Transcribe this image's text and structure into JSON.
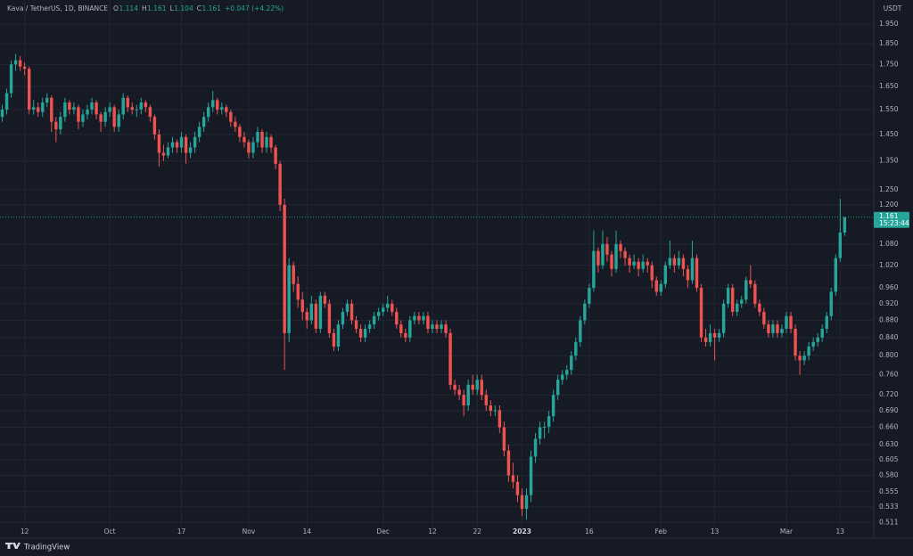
{
  "chart_data": {
    "type": "candlestick",
    "symbol": "Kava / TetherUS, 1D, BINANCE",
    "ohlc_legend": [
      {
        "key": "O",
        "value": "1.114"
      },
      {
        "key": "H",
        "value": "1.161"
      },
      {
        "key": "L",
        "value": "1.104"
      },
      {
        "key": "C",
        "value": "1.161"
      }
    ],
    "change": "+0.047 (+4.22%)",
    "currency": "USDT",
    "brand": "TradingView",
    "last_price": 1.161,
    "countdown": "15:23:44",
    "log_scale": true,
    "grid": true,
    "up_color": "#26a69a",
    "down_color": "#ef5350",
    "ylim": [
      0.497,
      2.081
    ],
    "yticks": [
      {
        "value": 1.95,
        "label": "1.950"
      },
      {
        "value": 1.85,
        "label": "1.850"
      },
      {
        "value": 1.75,
        "label": "1.750"
      },
      {
        "value": 1.65,
        "label": "1.650"
      },
      {
        "value": 1.55,
        "label": "1.550"
      },
      {
        "value": 1.45,
        "label": "1.450"
      },
      {
        "value": 1.35,
        "label": "1.350"
      },
      {
        "value": 1.25,
        "label": "1.250"
      },
      {
        "value": 1.2,
        "label": "1.200"
      },
      {
        "value": 1.08,
        "label": "1.080"
      },
      {
        "value": 1.02,
        "label": "1.020"
      },
      {
        "value": 0.96,
        "label": "0.960"
      },
      {
        "value": 0.92,
        "label": "0.920"
      },
      {
        "value": 0.88,
        "label": "0.880"
      },
      {
        "value": 0.84,
        "label": "0.840"
      },
      {
        "value": 0.8,
        "label": "0.800"
      },
      {
        "value": 0.76,
        "label": "0.760"
      },
      {
        "value": 0.72,
        "label": "0.720"
      },
      {
        "value": 0.69,
        "label": "0.690"
      },
      {
        "value": 0.66,
        "label": "0.660"
      },
      {
        "value": 0.63,
        "label": "0.630"
      },
      0.605,
      {
        "value": 0.58,
        "label": "0.580"
      },
      0.555,
      0.533,
      0.511
    ],
    "xlim": [
      -0.5,
      194.5
    ],
    "xticks": [
      {
        "value": 5,
        "label": "12"
      },
      {
        "value": 24,
        "label": "Oct"
      },
      {
        "value": 40,
        "label": "17"
      },
      {
        "value": 55,
        "label": "Nov"
      },
      {
        "value": 68,
        "label": "14"
      },
      {
        "value": 85,
        "label": "Dec"
      },
      {
        "value": 96,
        "label": "12"
      },
      {
        "value": 106,
        "label": "22"
      },
      {
        "value": 116,
        "label": "2023"
      },
      {
        "value": 131,
        "label": "16"
      },
      {
        "value": 147,
        "label": "Feb"
      },
      {
        "value": 159,
        "label": "13"
      },
      {
        "value": 175,
        "label": "Mar"
      },
      {
        "value": 187,
        "label": "13"
      }
    ],
    "candles": [
      [
        1.52,
        1.57,
        1.5,
        1.55
      ],
      [
        1.55,
        1.64,
        1.53,
        1.62
      ],
      [
        1.62,
        1.77,
        1.6,
        1.75
      ],
      [
        1.75,
        1.8,
        1.72,
        1.77
      ],
      [
        1.77,
        1.79,
        1.72,
        1.74
      ],
      [
        1.74,
        1.76,
        1.7,
        1.73
      ],
      [
        1.73,
        1.74,
        1.53,
        1.55
      ],
      [
        1.55,
        1.59,
        1.53,
        1.56
      ],
      [
        1.56,
        1.58,
        1.52,
        1.54
      ],
      [
        1.54,
        1.6,
        1.52,
        1.58
      ],
      [
        1.58,
        1.62,
        1.56,
        1.6
      ],
      [
        1.6,
        1.61,
        1.46,
        1.5
      ],
      [
        1.5,
        1.52,
        1.42,
        1.47
      ],
      [
        1.47,
        1.54,
        1.45,
        1.52
      ],
      [
        1.52,
        1.6,
        1.5,
        1.58
      ],
      [
        1.58,
        1.59,
        1.53,
        1.55
      ],
      [
        1.55,
        1.58,
        1.53,
        1.56
      ],
      [
        1.56,
        1.57,
        1.47,
        1.5
      ],
      [
        1.5,
        1.55,
        1.48,
        1.53
      ],
      [
        1.53,
        1.57,
        1.51,
        1.55
      ],
      [
        1.55,
        1.6,
        1.53,
        1.58
      ],
      [
        1.58,
        1.59,
        1.51,
        1.53
      ],
      [
        1.53,
        1.54,
        1.46,
        1.5
      ],
      [
        1.5,
        1.56,
        1.48,
        1.54
      ],
      [
        1.54,
        1.58,
        1.52,
        1.56
      ],
      [
        1.56,
        1.57,
        1.46,
        1.48
      ],
      [
        1.48,
        1.55,
        1.46,
        1.53
      ],
      [
        1.53,
        1.62,
        1.51,
        1.6
      ],
      [
        1.6,
        1.61,
        1.54,
        1.56
      ],
      [
        1.56,
        1.58,
        1.53,
        1.55
      ],
      [
        1.55,
        1.57,
        1.52,
        1.551
      ],
      [
        1.551,
        1.6,
        1.53,
        1.58
      ],
      [
        1.58,
        1.59,
        1.54,
        1.56
      ],
      [
        1.56,
        1.57,
        1.5,
        1.52
      ],
      [
        1.52,
        1.53,
        1.43,
        1.45
      ],
      [
        1.45,
        1.47,
        1.33,
        1.38
      ],
      [
        1.38,
        1.41,
        1.35,
        1.37
      ],
      [
        1.37,
        1.42,
        1.36,
        1.4
      ],
      [
        1.4,
        1.44,
        1.38,
        1.42
      ],
      [
        1.42,
        1.43,
        1.38,
        1.4
      ],
      [
        1.4,
        1.46,
        1.38,
        1.44
      ],
      [
        1.44,
        1.45,
        1.34,
        1.38
      ],
      [
        1.38,
        1.42,
        1.36,
        1.4
      ],
      [
        1.4,
        1.46,
        1.38,
        1.44
      ],
      [
        1.44,
        1.5,
        1.42,
        1.48
      ],
      [
        1.48,
        1.54,
        1.46,
        1.52
      ],
      [
        1.52,
        1.58,
        1.5,
        1.56
      ],
      [
        1.56,
        1.63,
        1.54,
        1.59
      ],
      [
        1.59,
        1.6,
        1.53,
        1.55
      ],
      [
        1.55,
        1.58,
        1.53,
        1.56
      ],
      [
        1.56,
        1.57,
        1.52,
        1.54
      ],
      [
        1.54,
        1.55,
        1.48,
        1.5
      ],
      [
        1.5,
        1.52,
        1.46,
        1.48
      ],
      [
        1.48,
        1.49,
        1.42,
        1.44
      ],
      [
        1.44,
        1.46,
        1.4,
        1.42
      ],
      [
        1.42,
        1.43,
        1.36,
        1.38
      ],
      [
        1.38,
        1.44,
        1.36,
        1.42
      ],
      [
        1.42,
        1.48,
        1.4,
        1.46
      ],
      [
        1.46,
        1.47,
        1.38,
        1.4
      ],
      [
        1.4,
        1.46,
        1.38,
        1.44
      ],
      [
        1.44,
        1.45,
        1.38,
        1.4
      ],
      [
        1.4,
        1.41,
        1.32,
        1.34
      ],
      [
        1.34,
        1.35,
        1.18,
        1.2
      ],
      [
        1.2,
        1.22,
        0.77,
        0.85
      ],
      [
        0.85,
        1.04,
        0.83,
        1.02
      ],
      [
        1.02,
        1.03,
        0.95,
        0.97
      ],
      [
        0.97,
        0.99,
        0.91,
        0.93
      ],
      [
        0.93,
        0.95,
        0.88,
        0.9
      ],
      [
        0.9,
        0.91,
        0.86,
        0.88
      ],
      [
        0.88,
        0.94,
        0.87,
        0.92
      ],
      [
        0.92,
        0.93,
        0.85,
        0.86
      ],
      [
        0.86,
        0.95,
        0.85,
        0.94
      ],
      [
        0.94,
        0.95,
        0.91,
        0.92
      ],
      [
        0.92,
        0.93,
        0.84,
        0.85
      ],
      [
        0.85,
        0.86,
        0.81,
        0.82
      ],
      [
        0.82,
        0.88,
        0.81,
        0.87
      ],
      [
        0.87,
        0.91,
        0.86,
        0.9
      ],
      [
        0.9,
        0.93,
        0.89,
        0.92
      ],
      [
        0.92,
        0.93,
        0.87,
        0.88
      ],
      [
        0.88,
        0.89,
        0.85,
        0.86
      ],
      [
        0.86,
        0.87,
        0.83,
        0.84
      ],
      [
        0.84,
        0.87,
        0.83,
        0.86
      ],
      [
        0.86,
        0.88,
        0.85,
        0.87
      ],
      [
        0.87,
        0.9,
        0.86,
        0.89
      ],
      [
        0.89,
        0.91,
        0.88,
        0.9
      ],
      [
        0.9,
        0.92,
        0.89,
        0.91
      ],
      [
        0.91,
        0.94,
        0.9,
        0.92
      ],
      [
        0.92,
        0.93,
        0.89,
        0.9
      ],
      [
        0.9,
        0.91,
        0.86,
        0.87
      ],
      [
        0.87,
        0.88,
        0.84,
        0.85
      ],
      [
        0.85,
        0.86,
        0.83,
        0.84
      ],
      [
        0.84,
        0.89,
        0.83,
        0.88
      ],
      [
        0.88,
        0.9,
        0.87,
        0.89
      ],
      [
        0.89,
        0.9,
        0.87,
        0.88
      ],
      [
        0.88,
        0.9,
        0.87,
        0.89
      ],
      [
        0.89,
        0.9,
        0.85,
        0.86
      ],
      [
        0.86,
        0.88,
        0.85,
        0.87
      ],
      [
        0.87,
        0.88,
        0.85,
        0.86
      ],
      [
        0.86,
        0.88,
        0.85,
        0.87
      ],
      [
        0.87,
        0.88,
        0.84,
        0.85
      ],
      [
        0.85,
        0.86,
        0.73,
        0.74
      ],
      [
        0.74,
        0.75,
        0.72,
        0.73
      ],
      [
        0.73,
        0.74,
        0.71,
        0.72
      ],
      [
        0.72,
        0.73,
        0.68,
        0.7
      ],
      [
        0.7,
        0.75,
        0.69,
        0.74
      ],
      [
        0.74,
        0.76,
        0.72,
        0.73
      ],
      [
        0.73,
        0.76,
        0.72,
        0.75
      ],
      [
        0.75,
        0.76,
        0.71,
        0.72
      ],
      [
        0.72,
        0.73,
        0.69,
        0.7
      ],
      [
        0.7,
        0.71,
        0.68,
        0.69
      ],
      [
        0.69,
        0.7,
        0.68,
        0.691
      ],
      [
        0.691,
        0.7,
        0.65,
        0.66
      ],
      [
        0.66,
        0.67,
        0.61,
        0.62
      ],
      [
        0.62,
        0.63,
        0.57,
        0.58
      ],
      [
        0.58,
        0.6,
        0.56,
        0.57
      ],
      [
        0.57,
        0.58,
        0.54,
        0.55
      ],
      [
        0.55,
        0.56,
        0.52,
        0.53
      ],
      [
        0.53,
        0.56,
        0.515,
        0.55
      ],
      [
        0.55,
        0.62,
        0.54,
        0.61
      ],
      [
        0.61,
        0.65,
        0.6,
        0.64
      ],
      [
        0.64,
        0.67,
        0.63,
        0.66
      ],
      [
        0.66,
        0.67,
        0.64,
        0.661
      ],
      [
        0.661,
        0.69,
        0.65,
        0.68
      ],
      [
        0.68,
        0.73,
        0.67,
        0.72
      ],
      [
        0.72,
        0.76,
        0.71,
        0.75
      ],
      [
        0.75,
        0.77,
        0.74,
        0.76
      ],
      [
        0.76,
        0.78,
        0.75,
        0.77
      ],
      [
        0.77,
        0.81,
        0.76,
        0.8
      ],
      [
        0.8,
        0.84,
        0.79,
        0.83
      ],
      [
        0.83,
        0.89,
        0.82,
        0.88
      ],
      [
        0.88,
        0.93,
        0.87,
        0.92
      ],
      [
        0.92,
        0.97,
        0.91,
        0.96
      ],
      [
        0.96,
        1.12,
        0.95,
        1.06
      ],
      [
        1.06,
        1.07,
        1.0,
        1.02
      ],
      [
        1.02,
        1.12,
        1.01,
        1.08
      ],
      [
        1.08,
        1.1,
        1.03,
        1.05
      ],
      [
        1.05,
        1.06,
        0.99,
        1.01
      ],
      [
        1.01,
        1.12,
        1.0,
        1.08
      ],
      [
        1.08,
        1.09,
        1.04,
        1.06
      ],
      [
        1.06,
        1.07,
        1.02,
        1.04
      ],
      [
        1.04,
        1.05,
        1.0,
        1.02
      ],
      [
        1.02,
        1.05,
        1.01,
        1.03
      ],
      [
        1.03,
        1.04,
        0.99,
        1.01
      ],
      [
        1.01,
        1.05,
        1.0,
        1.03
      ],
      [
        1.03,
        1.04,
        1.0,
        1.02
      ],
      [
        1.02,
        1.03,
        0.96,
        0.98
      ],
      [
        0.98,
        0.99,
        0.94,
        0.95
      ],
      [
        0.95,
        0.98,
        0.94,
        0.97
      ],
      [
        0.97,
        1.03,
        0.96,
        1.02
      ],
      [
        1.02,
        1.09,
        1.01,
        1.04
      ],
      [
        1.04,
        1.05,
        1.0,
        1.02
      ],
      [
        1.02,
        1.06,
        1.01,
        1.04
      ],
      [
        1.04,
        1.05,
        0.99,
        1.01
      ],
      [
        1.01,
        1.02,
        0.96,
        0.98
      ],
      [
        0.98,
        1.09,
        0.97,
        1.04
      ],
      [
        1.04,
        1.05,
        0.95,
        0.96
      ],
      [
        0.96,
        0.97,
        0.83,
        0.84
      ],
      [
        0.84,
        0.86,
        0.82,
        0.83
      ],
      [
        0.83,
        0.87,
        0.82,
        0.85
      ],
      [
        0.85,
        0.86,
        0.79,
        0.84
      ],
      [
        0.84,
        0.86,
        0.83,
        0.85
      ],
      [
        0.85,
        0.93,
        0.84,
        0.92
      ],
      [
        0.92,
        0.97,
        0.91,
        0.96
      ],
      [
        0.96,
        0.97,
        0.89,
        0.9
      ],
      [
        0.9,
        0.93,
        0.89,
        0.92
      ],
      [
        0.92,
        0.94,
        0.91,
        0.93
      ],
      [
        0.93,
        0.99,
        0.92,
        0.98
      ],
      [
        0.98,
        1.02,
        0.96,
        0.97
      ],
      [
        0.97,
        0.98,
        0.91,
        0.92
      ],
      [
        0.92,
        0.93,
        0.89,
        0.9
      ],
      [
        0.9,
        0.91,
        0.86,
        0.87
      ],
      [
        0.87,
        0.88,
        0.84,
        0.85
      ],
      [
        0.85,
        0.88,
        0.84,
        0.87
      ],
      [
        0.87,
        0.88,
        0.84,
        0.85
      ],
      [
        0.85,
        0.87,
        0.84,
        0.86
      ],
      [
        0.86,
        0.9,
        0.85,
        0.89
      ],
      [
        0.89,
        0.9,
        0.85,
        0.86
      ],
      [
        0.86,
        0.87,
        0.79,
        0.8
      ],
      [
        0.8,
        0.81,
        0.76,
        0.79
      ],
      [
        0.79,
        0.81,
        0.78,
        0.8
      ],
      [
        0.8,
        0.83,
        0.79,
        0.82
      ],
      [
        0.82,
        0.84,
        0.81,
        0.83
      ],
      [
        0.83,
        0.85,
        0.82,
        0.84
      ],
      [
        0.84,
        0.87,
        0.83,
        0.86
      ],
      [
        0.86,
        0.9,
        0.85,
        0.89
      ],
      [
        0.89,
        0.96,
        0.88,
        0.95
      ],
      [
        0.95,
        1.05,
        0.94,
        1.04
      ],
      [
        1.04,
        1.22,
        1.03,
        1.114
      ],
      [
        1.114,
        1.161,
        1.104,
        1.161
      ]
    ]
  }
}
